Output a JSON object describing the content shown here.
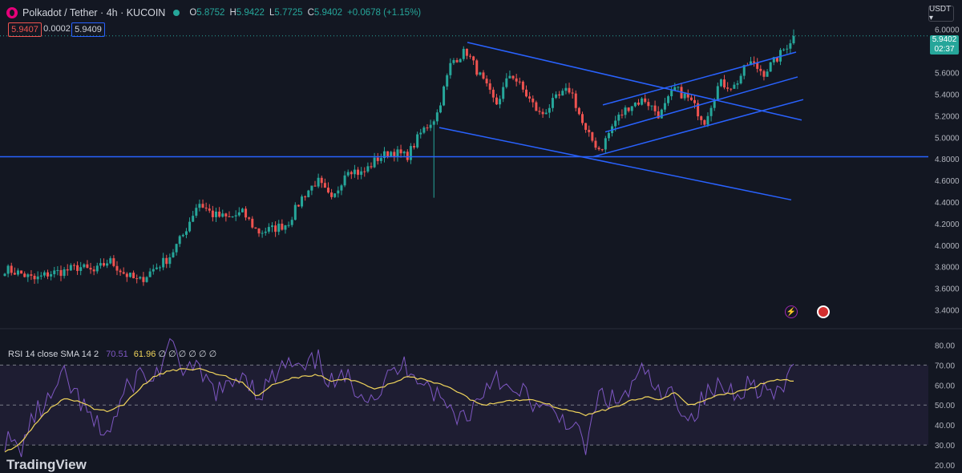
{
  "header": {
    "title": "Polkadot / Tether · 4h · KUCOIN",
    "ohlc": [
      {
        "k": "O",
        "v": "5.8752"
      },
      {
        "k": "H",
        "v": "5.9422"
      },
      {
        "k": "L",
        "v": "5.7725"
      },
      {
        "k": "C",
        "v": "5.9402"
      },
      {
        "k": "",
        "v": "+0.0678 (+1.15%)"
      }
    ],
    "sell": "5.9407",
    "spread": "0.0002",
    "buy": "5.9409",
    "currency": "USDT ▾"
  },
  "last_price": {
    "price": "5.9402",
    "countdown": "02:37"
  },
  "rsi_header": {
    "label": "RSI 14 close SMA 14 2",
    "rsi": "70.51",
    "sma": "61.96",
    "extra": "∅ ∅ ∅ ∅ ∅ ∅"
  },
  "watermark": "TradingView",
  "colors": {
    "up": "#26a69a",
    "down": "#ef5350",
    "trendline": "#2962ff",
    "rsi": "#7e57c2",
    "rsi_sma": "#f0d45b",
    "bg": "#131722"
  },
  "icons": [
    "bolt-icon",
    "us-flag-icon"
  ],
  "chart_data": [
    {
      "type": "candlestick",
      "ylim": [
        3.3,
        6.05
      ],
      "yticks": [
        "6.0000",
        "5.8000",
        "5.6000",
        "5.4000",
        "5.2000",
        "5.0000",
        "4.8000",
        "4.6000",
        "4.4000",
        "4.2000",
        "4.0000",
        "3.8000",
        "3.6000",
        "3.4000"
      ],
      "anchor_closes": [
        3.78,
        3.74,
        3.68,
        3.74,
        3.76,
        3.8,
        3.75,
        3.86,
        3.74,
        3.66,
        3.78,
        3.88,
        4.1,
        4.4,
        4.28,
        4.25,
        4.3,
        4.12,
        4.15,
        4.2,
        4.45,
        4.6,
        4.4,
        4.72,
        4.66,
        4.8,
        4.87,
        4.82,
        5.05,
        5.2,
        5.7,
        5.8,
        5.55,
        5.3,
        5.6,
        5.4,
        5.2,
        5.35,
        5.45,
        5.05,
        4.88,
        5.15,
        5.3,
        5.35,
        5.2,
        5.45,
        5.35,
        5.15,
        5.5,
        5.47,
        5.7,
        5.6,
        5.75,
        5.94
      ],
      "horizontal_line": 4.82,
      "trendlines": [
        {
          "from": [
            583,
            5.88
          ],
          "to": [
            1000,
            5.16
          ]
        },
        {
          "from": [
            548,
            5.09
          ],
          "to": [
            987,
            4.42
          ]
        },
        {
          "from": [
            740,
            4.82
          ],
          "to": [
            1002,
            5.35
          ]
        },
        {
          "from": [
            755,
            5.05
          ],
          "to": [
            995,
            5.56
          ]
        },
        {
          "from": [
            752,
            5.3
          ],
          "to": [
            993,
            5.79
          ]
        }
      ]
    },
    {
      "type": "line",
      "name": "RSI 14",
      "ylim": [
        20,
        85
      ],
      "yticks": [
        "80.00",
        "70.00",
        "60.00",
        "50.00",
        "40.00",
        "30.00",
        "20.00"
      ],
      "bands": [
        70,
        50,
        30
      ],
      "rsi_anchors": [
        33,
        27,
        45,
        52,
        64,
        52,
        40,
        36,
        55,
        66,
        62,
        79,
        69,
        66,
        58,
        57,
        68,
        55,
        63,
        71,
        66,
        73,
        60,
        63,
        57,
        55,
        66,
        70,
        64,
        55,
        47,
        44,
        55,
        67,
        54,
        56,
        47,
        45,
        42,
        28,
        56,
        51,
        57,
        68,
        53,
        56,
        42,
        54,
        59,
        57,
        61,
        58,
        53,
        70
      ],
      "sma_anchors": [
        27,
        30,
        40,
        48,
        53,
        52,
        48,
        47,
        50,
        58,
        64,
        67,
        68,
        68,
        66,
        64,
        61,
        54,
        60,
        63,
        64,
        65,
        62,
        63,
        61,
        58,
        61,
        64,
        63,
        61,
        58,
        54,
        50,
        51,
        52,
        53,
        52,
        49,
        47,
        45,
        47,
        49,
        52,
        54,
        53,
        56,
        50,
        52,
        55,
        56,
        58,
        61,
        63,
        62
      ]
    }
  ]
}
